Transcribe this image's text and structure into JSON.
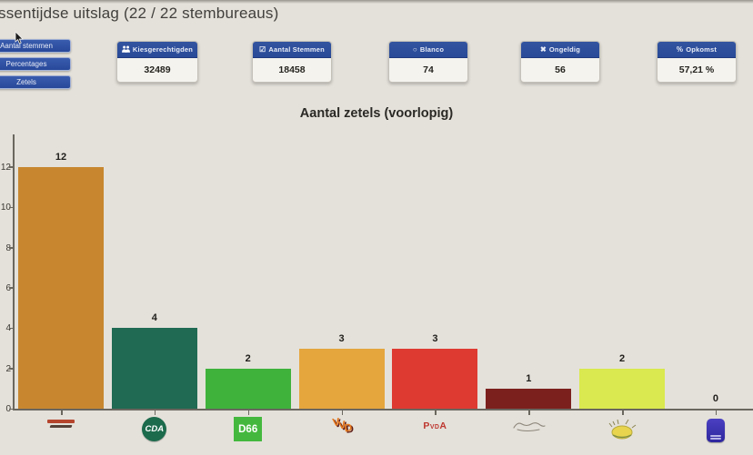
{
  "page": {
    "title": "ssentijdse uitslag (22 / 22 stembureaus)"
  },
  "sidebar": {
    "items": [
      {
        "label": "Aantal stemmen"
      },
      {
        "label": "Percentages"
      },
      {
        "label": "Zetels"
      }
    ]
  },
  "stats": [
    {
      "icon": "people-icon",
      "label": "Kiesgerechtigden",
      "value": "32489"
    },
    {
      "icon": "checkbox-icon",
      "label": "Aantal Stemmen",
      "value": "18458"
    },
    {
      "icon": "circle-icon",
      "label": "Blanco",
      "value": "74"
    },
    {
      "icon": "cross-icon",
      "label": "Ongeldig",
      "value": "56"
    },
    {
      "icon": "percent-icon",
      "label": "Opkomst",
      "value": "57,21 %"
    }
  ],
  "header_icons": {
    "checkbox": "☑",
    "circle": "○",
    "cross": "✖",
    "percent": "%"
  },
  "chart": {
    "title": "Aantal zetels (voorlopig)"
  },
  "parties": [
    {
      "name": "",
      "logo": "two-line-text-logo",
      "seats": 12,
      "color": "#c8872f"
    },
    {
      "name": "CDA",
      "logo": "cda-green-circle-logo",
      "seats": 4,
      "color": "#206a53"
    },
    {
      "name": "D66",
      "logo": "d66-green-square-logo",
      "seats": 2,
      "color": "#3fb23c"
    },
    {
      "name": "VVD",
      "logo": "vvd-orange-letters-logo",
      "seats": 3,
      "color": "#e5a63d"
    },
    {
      "name": "PvdA",
      "logo": "pvda-red-text-logo",
      "seats": 3,
      "color": "#de3a32"
    },
    {
      "name": "",
      "logo": "script-signature-logo",
      "seats": 1,
      "color": "#7c201d"
    },
    {
      "name": "",
      "logo": "sun-sketch-logo",
      "seats": 2,
      "color": "#d9e94f"
    },
    {
      "name": "",
      "logo": "blue-badge-logo",
      "seats": 0,
      "color": "#3a35ad"
    }
  ],
  "chart_data": {
    "type": "bar",
    "title": "Aantal zetels (voorlopig)",
    "categories": [
      "party-1 (logo)",
      "CDA",
      "D66",
      "VVD",
      "PvdA",
      "party-6 (script logo)",
      "party-7 (sun logo)",
      "party-8 (blue logo)"
    ],
    "values": [
      12,
      4,
      2,
      3,
      3,
      1,
      2,
      0
    ],
    "bar_colors": [
      "#c8872f",
      "#206a53",
      "#3fb23c",
      "#e5a63d",
      "#de3a32",
      "#7c201d",
      "#d9e94f",
      "#3a35ad"
    ],
    "xlabel": "",
    "ylabel": "",
    "ylim": [
      0,
      13.6
    ],
    "yticks": [
      0,
      2,
      4,
      6,
      8,
      10,
      12
    ],
    "grid": false,
    "legend": false
  }
}
